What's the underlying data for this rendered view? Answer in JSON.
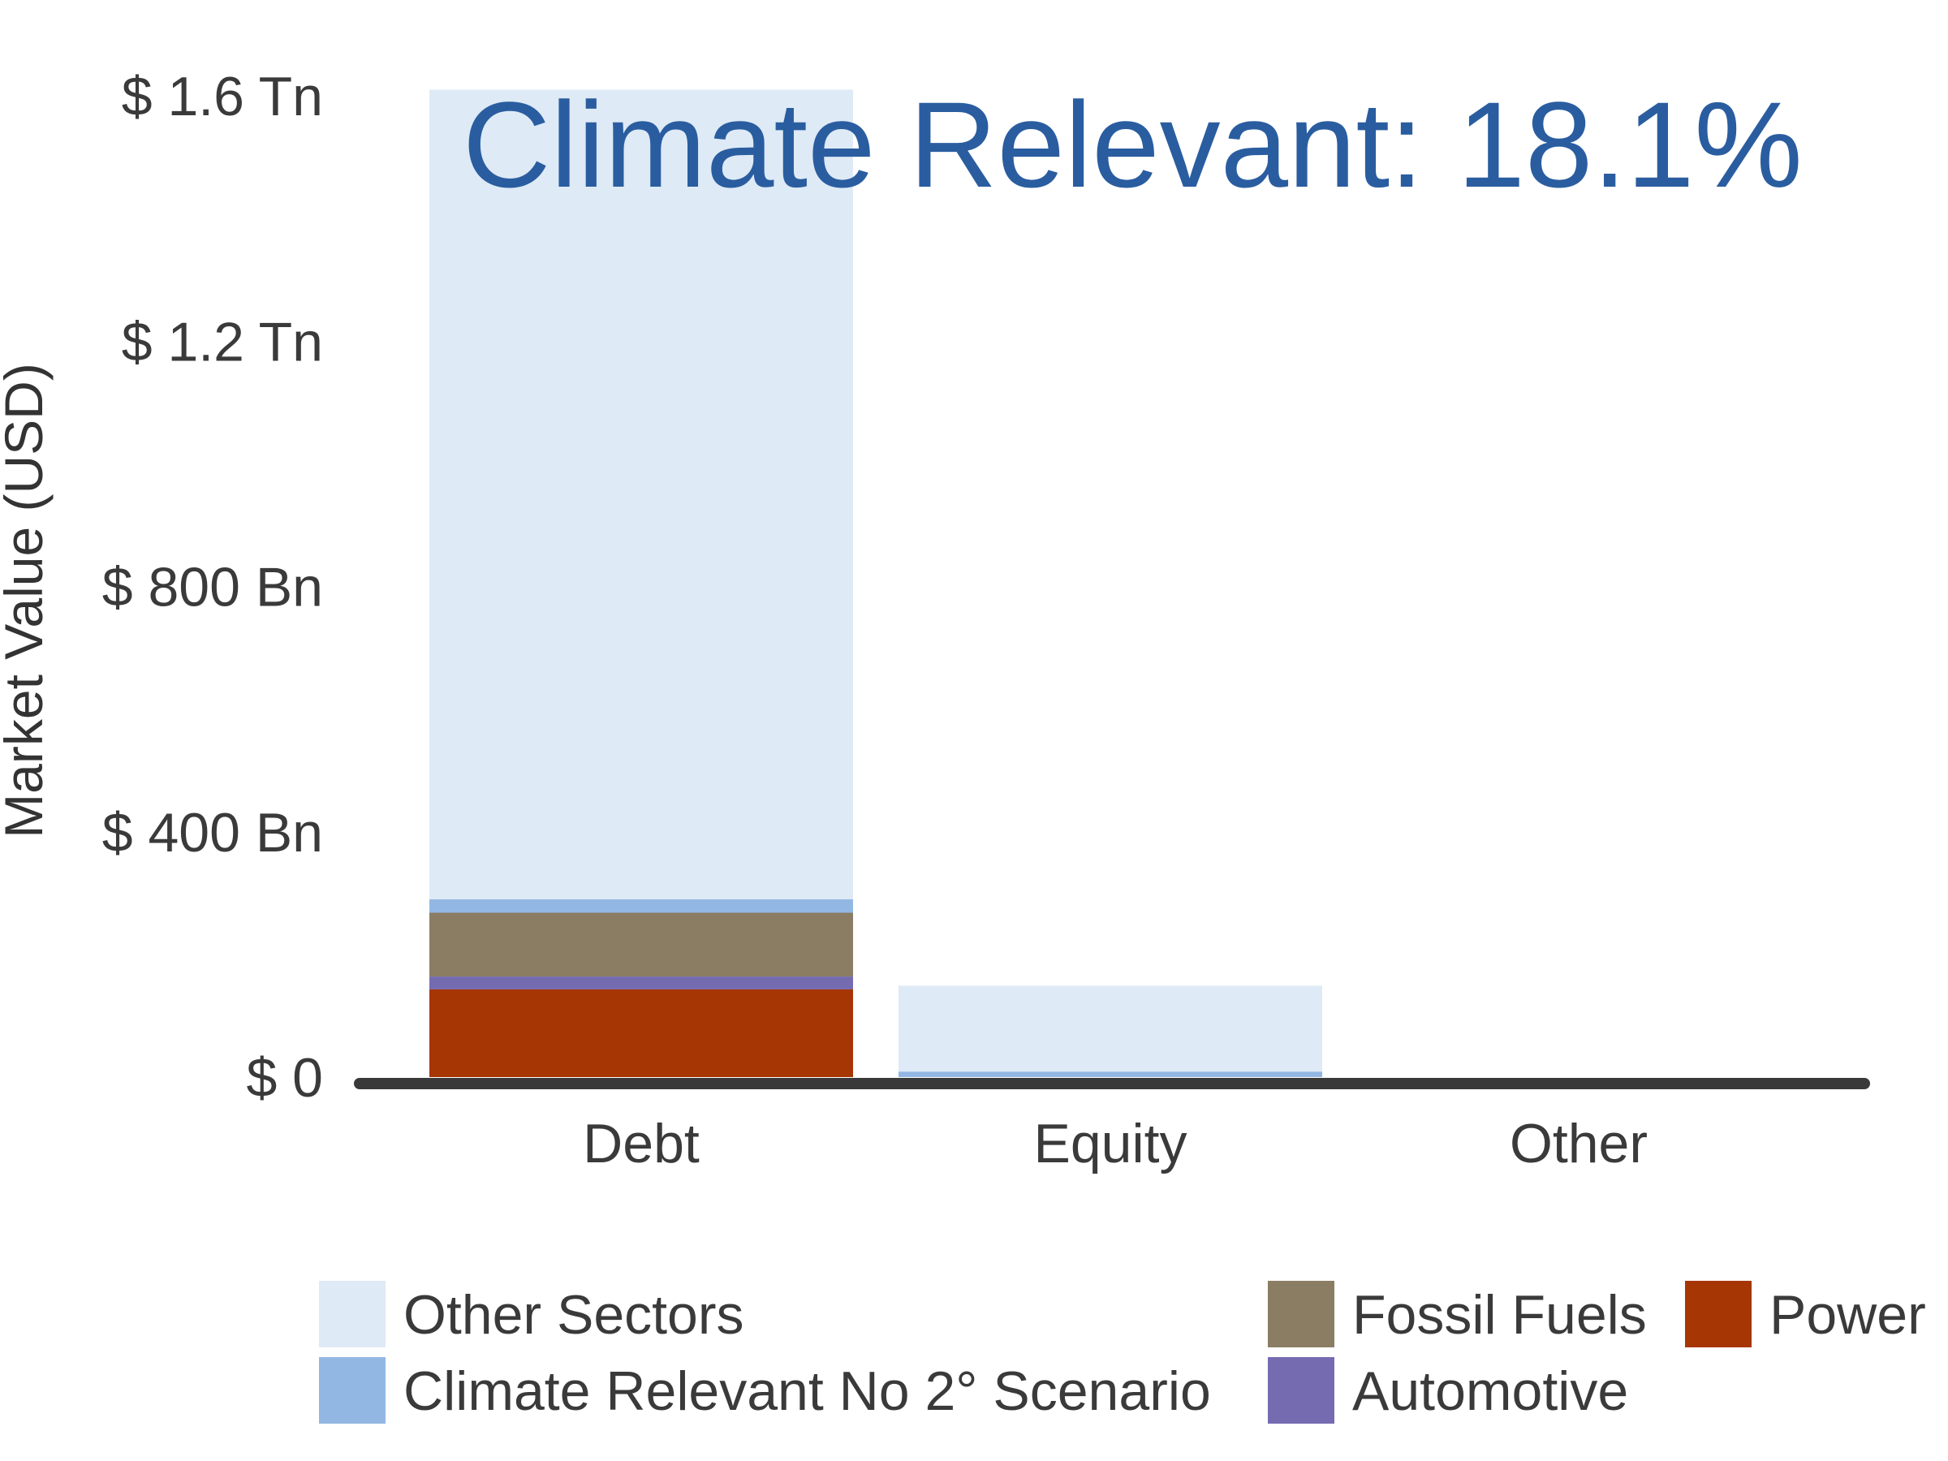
{
  "chart_data": {
    "type": "bar",
    "stacked": true,
    "title": "Climate Relevant: 18.1%",
    "ylabel": "Market Value (USD)",
    "xlabel": "",
    "ylim": [
      0,
      1600
    ],
    "y_unit": "Bn USD",
    "y_ticks": [
      {
        "value": 0,
        "label": "$ 0"
      },
      {
        "value": 400,
        "label": "$ 400 Bn"
      },
      {
        "value": 800,
        "label": "$ 800 Bn"
      },
      {
        "value": 1200,
        "label": "$ 1.2 Tn"
      },
      {
        "value": 1600,
        "label": "$ 1.6 Tn"
      }
    ],
    "categories": [
      "Debt",
      "Equity",
      "Other"
    ],
    "series": [
      {
        "name": "Power",
        "color": "#a63603",
        "values": [
          143,
          0,
          0
        ]
      },
      {
        "name": "Automotive",
        "color": "#756bb1",
        "values": [
          21,
          0,
          0
        ]
      },
      {
        "name": "Fossil Fuels",
        "color": "#8b7d64",
        "values": [
          104,
          0,
          0
        ]
      },
      {
        "name": "Climate Relevant No 2° Scenario",
        "color": "#93b7e3",
        "values": [
          22,
          9,
          0
        ]
      },
      {
        "name": "Other Sectors",
        "color": "#deeaf6",
        "values": [
          1320,
          140,
          0
        ]
      }
    ],
    "legend": {
      "position": "bottom",
      "rows": [
        [
          "Other Sectors",
          "Fossil Fuels",
          "Power"
        ],
        [
          "Climate Relevant No 2° Scenario",
          "Automotive"
        ]
      ]
    },
    "grid": false,
    "axis_line_color": "#3a3a3a"
  }
}
